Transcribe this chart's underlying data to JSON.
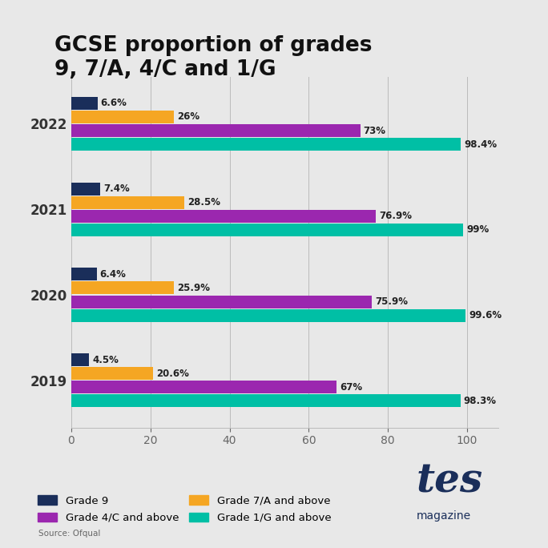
{
  "title": "GCSE proportion of grades\n9, 7/A, 4/C and 1/G",
  "years": [
    "2022",
    "2021",
    "2020",
    "2019"
  ],
  "grades_order": [
    "Grade 9",
    "Grade 7/A and above",
    "Grade 4/C and above",
    "Grade 1/G and above"
  ],
  "grades": {
    "Grade 9": [
      6.6,
      7.4,
      6.4,
      4.5
    ],
    "Grade 7/A and above": [
      26.0,
      28.5,
      25.9,
      20.6
    ],
    "Grade 4/C and above": [
      73.0,
      76.9,
      75.9,
      67.0
    ],
    "Grade 1/G and above": [
      98.4,
      99.0,
      99.6,
      98.3
    ]
  },
  "labels": {
    "Grade 9": [
      "6.6%",
      "7.4%",
      "6.4%",
      "4.5%"
    ],
    "Grade 7/A and above": [
      "26%",
      "28.5%",
      "25.9%",
      "20.6%"
    ],
    "Grade 4/C and above": [
      "73%",
      "76.9%",
      "75.9%",
      "67%"
    ],
    "Grade 1/G and above": [
      "98.4%",
      "99%",
      "99.6%",
      "98.3%"
    ]
  },
  "colors": {
    "Grade 9": "#1a2e5a",
    "Grade 7/A and above": "#f5a623",
    "Grade 4/C and above": "#9b27af",
    "Grade 1/G and above": "#00bfa5"
  },
  "background_color": "#e8e8e8",
  "xlim": [
    0,
    108
  ],
  "source": "Source: Ofqual",
  "tes_color": "#1a2e5a"
}
